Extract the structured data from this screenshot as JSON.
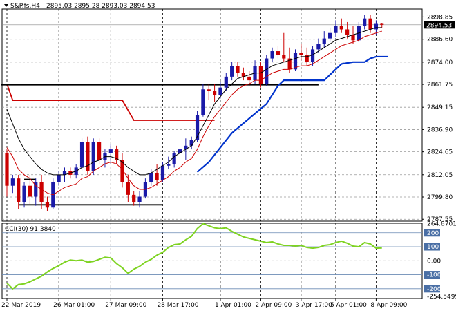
{
  "chart_data": [
    {
      "type": "candlestick",
      "header": {
        "symbol": "S&P.fs,H4",
        "values": "2895.03 2895.28 2893.03 2894.53"
      },
      "current_price": {
        "label": "2894.53",
        "value": 2894.53
      },
      "y_ticks": [
        {
          "label": "2898.85",
          "value": 2898.85
        },
        {
          "label": "2886.60",
          "value": 2886.6
        },
        {
          "label": "2874.00",
          "value": 2874.0
        },
        {
          "label": "2861.75",
          "value": 2861.75
        },
        {
          "label": "2849.15",
          "value": 2849.15
        },
        {
          "label": "2836.90",
          "value": 2836.9
        },
        {
          "label": "2824.65",
          "value": 2824.65
        },
        {
          "label": "2812.05",
          "value": 2812.05
        },
        {
          "label": "2799.80",
          "value": 2799.8
        },
        {
          "label": "2787.55",
          "value": 2787.55
        }
      ],
      "ylim": [
        2786.5,
        2903.2
      ],
      "colors": {
        "up": "#1a1aa8",
        "down": "#cc0000",
        "ma_fast": "#cc0000",
        "ma_slow": "#000000",
        "stop": "#0033cc",
        "resistance": "#cc0000",
        "range": "#000000"
      },
      "candles": [
        [
          2824,
          2826,
          2800,
          2806
        ],
        [
          2806,
          2812,
          2802,
          2810
        ],
        [
          2810,
          2812,
          2793,
          2797
        ],
        [
          2797,
          2808,
          2794,
          2806
        ],
        [
          2806,
          2812,
          2796,
          2800
        ],
        [
          2800,
          2810,
          2795,
          2808
        ],
        [
          2808,
          2812,
          2793,
          2797
        ],
        [
          2797,
          2800,
          2792,
          2794
        ],
        [
          2794,
          2810,
          2793,
          2808
        ],
        [
          2808,
          2814,
          2806,
          2812
        ],
        [
          2812,
          2816,
          2808,
          2814
        ],
        [
          2814,
          2816,
          2810,
          2812
        ],
        [
          2812,
          2818,
          2810,
          2816
        ],
        [
          2816,
          2832,
          2814,
          2830
        ],
        [
          2830,
          2833,
          2812,
          2814
        ],
        [
          2814,
          2832,
          2812,
          2830
        ],
        [
          2830,
          2832,
          2818,
          2820
        ],
        [
          2820,
          2826,
          2816,
          2824
        ],
        [
          2824,
          2829,
          2818,
          2826
        ],
        [
          2826,
          2828,
          2818,
          2820
        ],
        [
          2820,
          2824,
          2805,
          2808
        ],
        [
          2808,
          2812,
          2797,
          2801
        ],
        [
          2801,
          2803,
          2795,
          2797
        ],
        [
          2797,
          2803,
          2794,
          2800
        ],
        [
          2800,
          2810,
          2799,
          2808
        ],
        [
          2808,
          2815,
          2806,
          2813
        ],
        [
          2813,
          2818,
          2806,
          2809
        ],
        [
          2809,
          2819,
          2808,
          2817
        ],
        [
          2817,
          2822,
          2815,
          2818
        ],
        [
          2818,
          2825,
          2816,
          2824
        ],
        [
          2824,
          2827,
          2821,
          2826
        ],
        [
          2826,
          2832,
          2820,
          2828
        ],
        [
          2828,
          2833,
          2826,
          2831
        ],
        [
          2831,
          2847,
          2830,
          2845
        ],
        [
          2845,
          2862,
          2844,
          2859
        ],
        [
          2859,
          2862,
          2853,
          2858
        ],
        [
          2858,
          2862,
          2852,
          2856
        ],
        [
          2856,
          2863,
          2854,
          2860
        ],
        [
          2860,
          2868,
          2858,
          2866
        ],
        [
          2866,
          2874,
          2864,
          2872
        ],
        [
          2872,
          2874,
          2866,
          2868
        ],
        [
          2868,
          2871,
          2864,
          2866
        ],
        [
          2866,
          2869,
          2861,
          2864
        ],
        [
          2864,
          2875,
          2862,
          2872
        ],
        [
          2872,
          2874,
          2860,
          2862
        ],
        [
          2862,
          2878,
          2861,
          2876
        ],
        [
          2876,
          2882,
          2874,
          2880
        ],
        [
          2880,
          2883,
          2876,
          2878
        ],
        [
          2878,
          2890,
          2874,
          2876
        ],
        [
          2876,
          2882,
          2868,
          2870
        ],
        [
          2870,
          2881,
          2869,
          2879
        ],
        [
          2879,
          2884,
          2875,
          2878
        ],
        [
          2878,
          2882,
          2872,
          2874
        ],
        [
          2874,
          2883,
          2872,
          2881
        ],
        [
          2881,
          2887,
          2879,
          2884
        ],
        [
          2884,
          2891,
          2882,
          2887
        ],
        [
          2887,
          2893,
          2885,
          2890
        ],
        [
          2890,
          2897,
          2888,
          2894
        ],
        [
          2894,
          2898,
          2890,
          2892
        ],
        [
          2892,
          2896,
          2887,
          2889
        ],
        [
          2889,
          2894,
          2884,
          2886
        ],
        [
          2886,
          2896,
          2885,
          2894
        ],
        [
          2894,
          2900,
          2892,
          2898
        ],
        [
          2898,
          2900,
          2890,
          2892
        ],
        [
          2892,
          2897,
          2889,
          2895
        ],
        [
          2895,
          2895.28,
          2893.03,
          2894.53
        ]
      ],
      "ma_fast": [
        2827,
        2822,
        2815,
        2812,
        2810,
        2806,
        2804,
        2802,
        2801,
        2803,
        2805,
        2806,
        2807,
        2810,
        2811,
        2814,
        2816,
        2818,
        2819,
        2818,
        2815,
        2810,
        2806,
        2804,
        2804,
        2805,
        2807,
        2809,
        2811,
        2814,
        2816,
        2819,
        2821,
        2826,
        2833,
        2839,
        2844,
        2848,
        2852,
        2856,
        2859,
        2861,
        2862,
        2864,
        2864,
        2866,
        2868,
        2869,
        2870,
        2870,
        2871,
        2872,
        2872,
        2873,
        2875,
        2877,
        2879,
        2881,
        2883,
        2884,
        2885,
        2886,
        2888,
        2889,
        2890,
        2891
      ],
      "ma_slow": [
        2848,
        2840,
        2832,
        2826,
        2822,
        2818,
        2815,
        2813,
        2812,
        2812,
        2812,
        2813,
        2814,
        2816,
        2817,
        2819,
        2820,
        2822,
        2822,
        2821,
        2819,
        2816,
        2814,
        2812,
        2812,
        2813,
        2815,
        2817,
        2819,
        2822,
        2824,
        2826,
        2828,
        2833,
        2839,
        2845,
        2851,
        2855,
        2859,
        2862,
        2865,
        2866,
        2867,
        2868,
        2868,
        2870,
        2872,
        2873,
        2874,
        2875,
        2876,
        2877,
        2877,
        2878,
        2880,
        2882,
        2884,
        2886,
        2887,
        2888,
        2889,
        2890,
        2891,
        2892,
        2893,
        2893
      ],
      "stop_line": [
        {
          "i": 33,
          "v": 2813.5
        },
        {
          "i": 35,
          "v": 2819
        },
        {
          "i": 37,
          "v": 2827
        },
        {
          "i": 39,
          "v": 2835
        },
        {
          "i": 42,
          "v": 2843
        },
        {
          "i": 45,
          "v": 2851
        },
        {
          "i": 47,
          "v": 2861
        },
        {
          "i": 48,
          "v": 2864
        },
        {
          "i": 55,
          "v": 2864
        },
        {
          "i": 56,
          "v": 2867
        },
        {
          "i": 57,
          "v": 2870
        },
        {
          "i": 58,
          "v": 2873
        },
        {
          "i": 60,
          "v": 2874
        },
        {
          "i": 62,
          "v": 2874
        },
        {
          "i": 63,
          "v": 2876
        },
        {
          "i": 64,
          "v": 2877
        },
        {
          "i": 66,
          "v": 2877
        }
      ],
      "resistance_line": [
        {
          "i": 0,
          "v": 2862
        },
        {
          "i": 1,
          "v": 2853
        },
        {
          "i": 20,
          "v": 2853
        },
        {
          "i": 22,
          "v": 2842
        },
        {
          "i": 36,
          "v": 2842
        }
      ],
      "range_lines": [
        {
          "from": -1,
          "to": 54,
          "v": 2861.5
        },
        {
          "from": 2,
          "to": 27,
          "v": 2795.5
        },
        {
          "from": 3,
          "to": 5,
          "v": 2809.5
        }
      ],
      "vertical_lines_at": [
        0,
        9,
        18,
        27,
        37,
        44,
        51,
        57,
        64
      ]
    },
    {
      "type": "line",
      "label": "CCI(30) 91.3840",
      "y_ticks": [
        {
          "label": "264.8701",
          "value": 264.87
        },
        {
          "label": "200",
          "value": 200
        },
        {
          "label": "100",
          "value": 100
        },
        {
          "label": "0.00",
          "value": 0
        },
        {
          "label": "-100",
          "value": -100
        },
        {
          "label": "-200",
          "value": -200
        },
        {
          "label": "-254.5499",
          "value": -254.55
        }
      ],
      "badge_ticks": [
        "200",
        "100",
        "-100",
        "-200"
      ],
      "ylim": [
        -270,
        268
      ],
      "levels": [
        200,
        100,
        -100,
        -200
      ],
      "colors": {
        "line": "#7ed321",
        "badge": "#4a6fa5"
      },
      "values": [
        -160,
        -200,
        -170,
        -165,
        -150,
        -130,
        -110,
        -80,
        -55,
        -35,
        -10,
        5,
        0,
        5,
        -10,
        -5,
        10,
        25,
        20,
        -20,
        -50,
        -90,
        -60,
        -40,
        -10,
        10,
        40,
        60,
        95,
        115,
        120,
        150,
        175,
        230,
        265,
        250,
        235,
        230,
        235,
        210,
        190,
        170,
        160,
        150,
        140,
        130,
        135,
        120,
        110,
        110,
        105,
        110,
        95,
        90,
        95,
        110,
        115,
        130,
        140,
        125,
        105,
        100,
        130,
        120,
        90,
        91.384
      ]
    }
  ],
  "x_axis": {
    "labels": [
      {
        "label": "22 Mar 2019",
        "i": 0
      },
      {
        "label": "26 Mar 01:00",
        "i": 9
      },
      {
        "label": "27 Mar 09:00",
        "i": 18
      },
      {
        "label": "28 Mar 17:00",
        "i": 27
      },
      {
        "label": "1 Apr 01:00",
        "i": 37
      },
      {
        "label": "2 Apr 09:00",
        "i": 44
      },
      {
        "label": "3 Apr 17:00",
        "i": 51
      },
      {
        "label": "5 Apr 01:00",
        "i": 57
      },
      {
        "label": "8 Apr 09:00",
        "i": 64
      }
    ]
  }
}
